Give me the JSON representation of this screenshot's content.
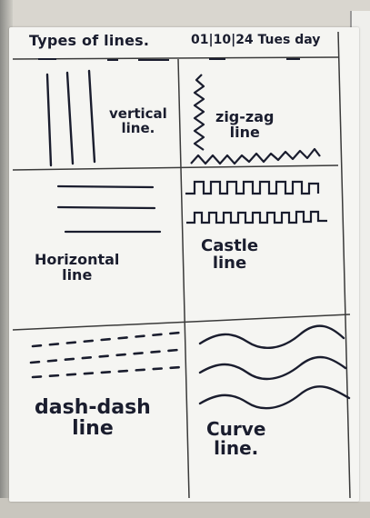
{
  "title": "Types of lines.",
  "date": "01|10|24 Tues day",
  "cells": {
    "vertical": "vertical\nline.",
    "zigzag": "zig-zag\nline",
    "horizontal": "Horizontal\nline",
    "castle": "Castle\nline",
    "dash": "dash-dash\nline",
    "curve": "Curve\nline."
  },
  "colors": {
    "ink": "#1a1d2e",
    "paper": "#f5f5f2",
    "grid": "#3a3a3a"
  }
}
